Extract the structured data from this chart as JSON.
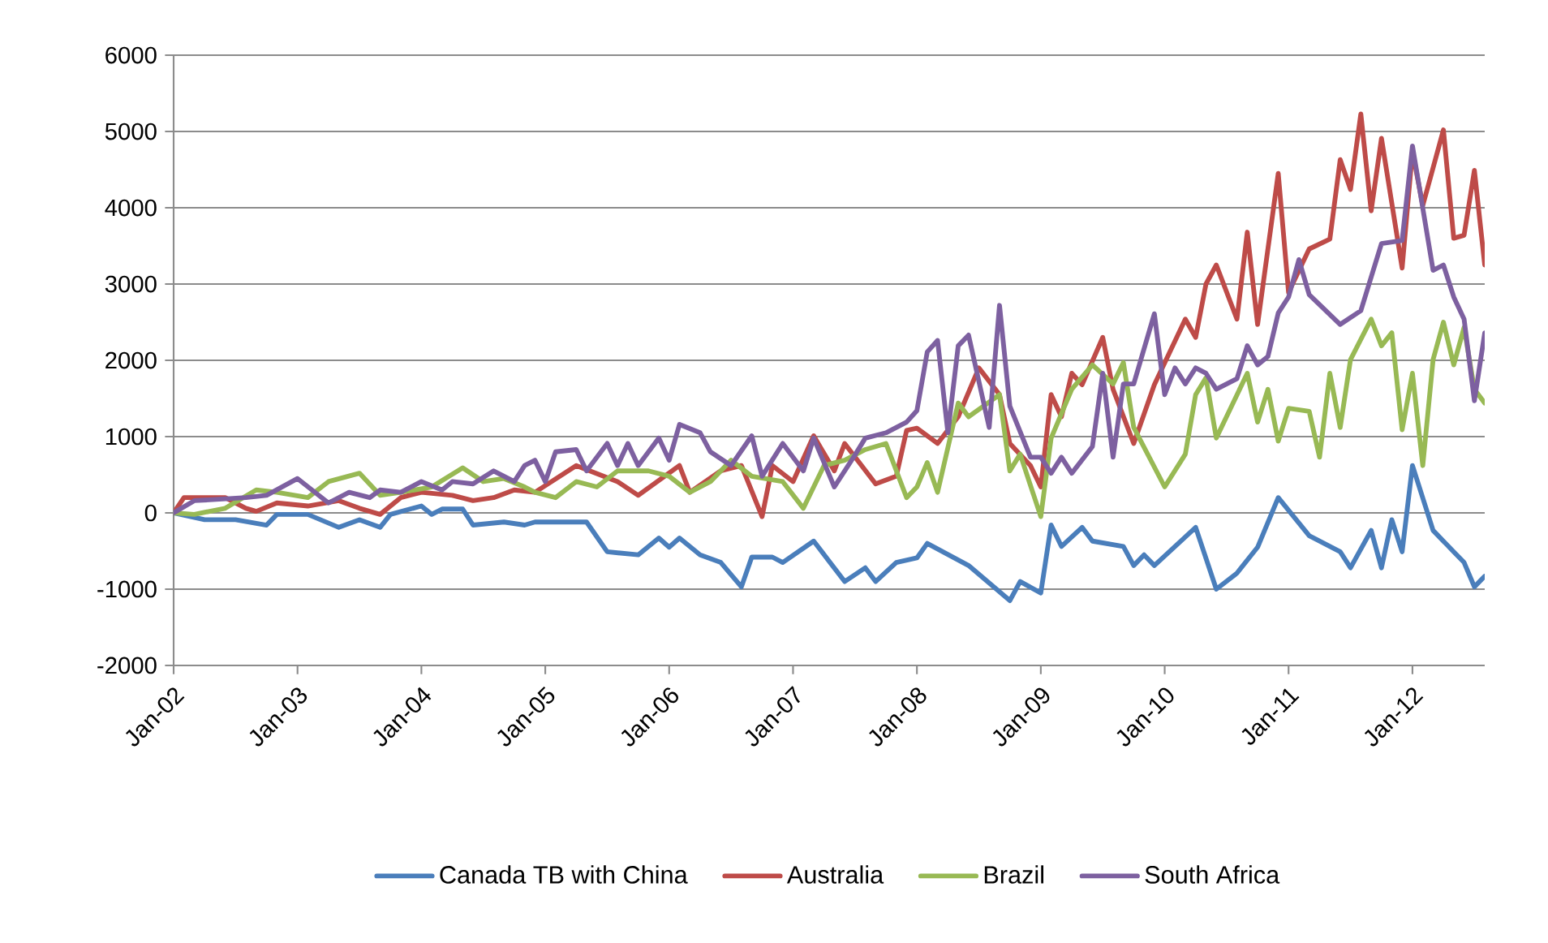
{
  "chart_data": {
    "type": "line",
    "xlim": [
      "2002-01",
      "2012-08"
    ],
    "xticks": [
      {
        "value": "2002-01",
        "label": "Jan-02"
      },
      {
        "value": "2003-01",
        "label": "Jan-03"
      },
      {
        "value": "2004-01",
        "label": "Jan-04"
      },
      {
        "value": "2005-01",
        "label": "Jan-05"
      },
      {
        "value": "2006-01",
        "label": "Jan-06"
      },
      {
        "value": "2007-01",
        "label": "Jan-07"
      },
      {
        "value": "2008-01",
        "label": "Jan-08"
      },
      {
        "value": "2009-01",
        "label": "Jan-09"
      },
      {
        "value": "2010-01",
        "label": "Jan-10"
      },
      {
        "value": "2011-01",
        "label": "Jan-11"
      },
      {
        "value": "2012-01",
        "label": "Jan-12"
      }
    ],
    "ylim": [
      -2000,
      6000
    ],
    "yticks": [
      -2000,
      -1000,
      0,
      1000,
      2000,
      3000,
      4000,
      5000,
      6000
    ],
    "grid": "y",
    "legend": "bottom",
    "series": [
      {
        "name": "Canada TB with China",
        "color": "#4a7ebb",
        "x": [
          "2002-01",
          "2002-04",
          "2002-07",
          "2002-10",
          "2002-11",
          "2003-02",
          "2003-05",
          "2003-07",
          "2003-09",
          "2003-10",
          "2004-01",
          "2004-02",
          "2004-03",
          "2004-05",
          "2004-06",
          "2004-09",
          "2004-11",
          "2004-12",
          "2005-05",
          "2005-07",
          "2005-10",
          "2005-12",
          "2006-01",
          "2006-02",
          "2006-04",
          "2006-06",
          "2006-08",
          "2006-09",
          "2006-11",
          "2006-12",
          "2007-03",
          "2007-06",
          "2007-08",
          "2007-09",
          "2007-11",
          "2008-01",
          "2008-02",
          "2008-06",
          "2008-10",
          "2008-11",
          "2009-01",
          "2009-02",
          "2009-03",
          "2009-05",
          "2009-06",
          "2009-09",
          "2009-10",
          "2009-11",
          "2009-12",
          "2010-04",
          "2010-06",
          "2010-08",
          "2010-10",
          "2010-12",
          "2011-03",
          "2011-06",
          "2011-07",
          "2011-09",
          "2011-10",
          "2011-11",
          "2011-12",
          "2012-01",
          "2012-03",
          "2012-05",
          "2012-06",
          "2012-07",
          "2012-08"
        ],
        "values": [
          0,
          -90,
          -90,
          -160,
          -20,
          -20,
          -190,
          -90,
          -190,
          -20,
          90,
          -20,
          50,
          50,
          -160,
          -120,
          -160,
          -120,
          -120,
          -510,
          -550,
          -330,
          -450,
          -330,
          -550,
          -650,
          -970,
          -580,
          -580,
          -650,
          -370,
          -900,
          -720,
          -900,
          -650,
          -590,
          -400,
          -690,
          -1150,
          -900,
          -1050,
          -160,
          -440,
          -190,
          -370,
          -440,
          -690,
          -550,
          -690,
          -190,
          -1000,
          -790,
          -450,
          200,
          -300,
          -510,
          -720,
          -230,
          -720,
          -90,
          -510,
          620,
          -230,
          -510,
          -650,
          -970,
          -830
        ]
      },
      {
        "name": "Australia",
        "color": "#be4b48",
        "x": [
          "2002-01",
          "2002-02",
          "2002-06",
          "2002-08",
          "2002-09",
          "2002-11",
          "2003-02",
          "2003-05",
          "2003-07",
          "2003-09",
          "2003-11",
          "2004-01",
          "2004-04",
          "2004-06",
          "2004-08",
          "2004-10",
          "2004-12",
          "2005-04",
          "2005-08",
          "2005-10",
          "2006-02",
          "2006-03",
          "2006-06",
          "2006-08",
          "2006-10",
          "2006-11",
          "2007-01",
          "2007-03",
          "2007-05",
          "2007-06",
          "2007-09",
          "2007-11",
          "2007-12",
          "2008-01",
          "2008-03",
          "2008-05",
          "2008-07",
          "2008-09",
          "2008-10",
          "2008-12",
          "2009-01",
          "2009-02",
          "2009-03",
          "2009-04",
          "2009-05",
          "2009-07",
          "2009-08",
          "2009-10",
          "2009-12",
          "2010-03",
          "2010-04",
          "2010-05",
          "2010-06",
          "2010-08",
          "2010-09",
          "2010-10",
          "2010-12",
          "2011-01",
          "2011-03",
          "2011-05",
          "2011-06",
          "2011-07",
          "2011-08",
          "2011-09",
          "2011-10",
          "2011-12",
          "2012-01",
          "2012-02",
          "2012-04",
          "2012-05",
          "2012-06",
          "2012-07",
          "2012-08"
        ],
        "values": [
          0,
          200,
          200,
          60,
          20,
          130,
          90,
          160,
          60,
          -20,
          200,
          270,
          230,
          160,
          200,
          300,
          270,
          620,
          410,
          230,
          620,
          270,
          550,
          620,
          -50,
          620,
          410,
          1010,
          550,
          910,
          380,
          480,
          1080,
          1110,
          910,
          1260,
          1900,
          1550,
          910,
          620,
          340,
          1550,
          1260,
          1830,
          1680,
          2300,
          1620,
          910,
          1680,
          2540,
          2300,
          3000,
          3250,
          2540,
          3680,
          2470,
          4450,
          2890,
          3460,
          3590,
          4630,
          4240,
          5230,
          3960,
          4910,
          3210,
          4740,
          4030,
          5020,
          3600,
          3640,
          4490,
          3250
        ]
      },
      {
        "name": "Brazil",
        "color": "#98b954",
        "x": [
          "2002-01",
          "2002-03",
          "2002-06",
          "2002-09",
          "2002-11",
          "2003-02",
          "2003-04",
          "2003-07",
          "2003-09",
          "2003-11",
          "2004-02",
          "2004-05",
          "2004-07",
          "2004-09",
          "2004-11",
          "2004-12",
          "2005-02",
          "2005-04",
          "2005-06",
          "2005-08",
          "2005-11",
          "2006-01",
          "2006-03",
          "2006-05",
          "2006-07",
          "2006-09",
          "2006-12",
          "2007-02",
          "2007-04",
          "2007-06",
          "2007-08",
          "2007-10",
          "2007-12",
          "2008-01",
          "2008-02",
          "2008-03",
          "2008-05",
          "2008-06",
          "2008-09",
          "2008-10",
          "2008-11",
          "2009-01",
          "2009-02",
          "2009-04",
          "2009-06",
          "2009-08",
          "2009-09",
          "2009-10",
          "2010-01",
          "2010-03",
          "2010-04",
          "2010-05",
          "2010-06",
          "2010-09",
          "2010-10",
          "2010-11",
          "2010-12",
          "2011-01",
          "2011-03",
          "2011-04",
          "2011-05",
          "2011-06",
          "2011-07",
          "2011-09",
          "2011-10",
          "2011-11",
          "2011-12",
          "2012-01",
          "2012-02",
          "2012-03",
          "2012-04",
          "2012-05",
          "2012-06",
          "2012-07",
          "2012-08"
        ],
        "values": [
          0,
          -20,
          60,
          300,
          270,
          200,
          410,
          520,
          230,
          270,
          340,
          590,
          410,
          450,
          340,
          270,
          200,
          410,
          340,
          550,
          550,
          480,
          270,
          410,
          690,
          480,
          410,
          60,
          620,
          690,
          830,
          910,
          200,
          340,
          660,
          270,
          1440,
          1260,
          1550,
          550,
          770,
          -50,
          980,
          1620,
          1940,
          1690,
          1970,
          1120,
          340,
          770,
          1550,
          1770,
          980,
          1830,
          1190,
          1620,
          940,
          1370,
          1330,
          730,
          1830,
          1120,
          2010,
          2540,
          2190,
          2360,
          1090,
          1830,
          620,
          2010,
          2500,
          1940,
          2430,
          1620,
          1440
        ]
      },
      {
        "name": "South Africa",
        "color": "#7d60a0",
        "x": [
          "2002-01",
          "2002-03",
          "2002-08",
          "2002-10",
          "2003-01",
          "2003-04",
          "2003-06",
          "2003-08",
          "2003-09",
          "2003-11",
          "2004-01",
          "2004-03",
          "2004-04",
          "2004-06",
          "2004-08",
          "2004-10",
          "2004-11",
          "2004-12",
          "2005-01",
          "2005-02",
          "2005-04",
          "2005-05",
          "2005-07",
          "2005-08",
          "2005-09",
          "2005-10",
          "2005-12",
          "2006-01",
          "2006-02",
          "2006-04",
          "2006-05",
          "2006-07",
          "2006-09",
          "2006-10",
          "2006-12",
          "2007-02",
          "2007-03",
          "2007-05",
          "2007-07",
          "2007-08",
          "2007-10",
          "2007-12",
          "2008-01",
          "2008-02",
          "2008-03",
          "2008-04",
          "2008-05",
          "2008-06",
          "2008-08",
          "2008-09",
          "2008-10",
          "2008-12",
          "2009-01",
          "2009-02",
          "2009-03",
          "2009-04",
          "2009-06",
          "2009-07",
          "2009-08",
          "2009-09",
          "2009-10",
          "2009-12",
          "2010-01",
          "2010-02",
          "2010-03",
          "2010-04",
          "2010-05",
          "2010-06",
          "2010-08",
          "2010-09",
          "2010-10",
          "2010-11",
          "2010-12",
          "2011-01",
          "2011-02",
          "2011-03",
          "2011-06",
          "2011-08",
          "2011-10",
          "2011-12",
          "2012-01",
          "2012-03",
          "2012-04",
          "2012-05",
          "2012-06",
          "2012-07",
          "2012-08"
        ],
        "values": [
          0,
          160,
          200,
          230,
          450,
          130,
          270,
          200,
          300,
          270,
          410,
          300,
          410,
          380,
          550,
          410,
          620,
          690,
          410,
          800,
          830,
          550,
          910,
          620,
          910,
          620,
          980,
          690,
          1160,
          1050,
          800,
          620,
          1010,
          480,
          910,
          550,
          980,
          340,
          760,
          980,
          1050,
          1190,
          1340,
          2110,
          2260,
          1050,
          2190,
          2330,
          1120,
          2720,
          1400,
          730,
          730,
          520,
          730,
          520,
          870,
          1830,
          730,
          1690,
          1690,
          2610,
          1550,
          1900,
          1690,
          1900,
          1830,
          1620,
          1760,
          2190,
          1940,
          2050,
          2620,
          2830,
          3320,
          2860,
          2470,
          2650,
          3530,
          3570,
          4810,
          3180,
          3250,
          2830,
          2540,
          1470,
          2360
        ]
      }
    ]
  }
}
